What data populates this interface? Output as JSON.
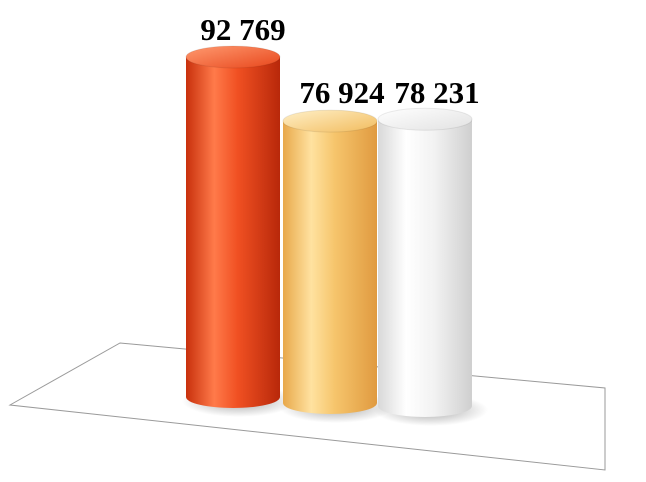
{
  "chart_data": {
    "type": "bar",
    "style": "3d-cylinder",
    "categories": [
      "",
      "",
      ""
    ],
    "values": [
      92769,
      76924,
      78231
    ],
    "data_labels": [
      "92 769",
      "76 924",
      "78 231"
    ],
    "colors": [
      "#e8471c",
      "#f6c56c",
      "#ececec"
    ],
    "legend": "none",
    "grid": false,
    "floor": true
  }
}
